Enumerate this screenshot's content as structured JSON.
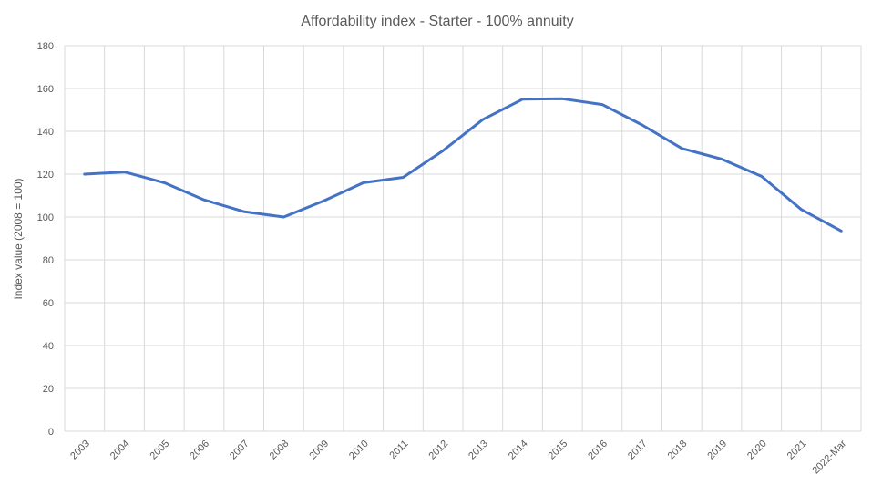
{
  "chart_data": {
    "type": "line",
    "title": "Affordability index - Starter - 100% annuity",
    "xlabel": "",
    "ylabel": "Index value (2008 = 100)",
    "ylim": [
      0,
      180
    ],
    "yticks": [
      0,
      20,
      40,
      60,
      80,
      100,
      120,
      140,
      160,
      180
    ],
    "grid": true,
    "legend": "none",
    "categories": [
      "2003",
      "2004",
      "2005",
      "2006",
      "2007",
      "2008",
      "2009",
      "2010",
      "2011",
      "2012",
      "2013",
      "2014",
      "2015",
      "2016",
      "2017",
      "2018",
      "2019",
      "2020",
      "2021",
      "2022-Mar"
    ],
    "series": [
      {
        "color": "#4472c4",
        "values": [
          120,
          121,
          116,
          108,
          102.5,
          100,
          107.5,
          116,
          118.5,
          131,
          145.5,
          155,
          155.2,
          152.5,
          143,
          132,
          127,
          119,
          103.5,
          93.5
        ]
      }
    ]
  }
}
